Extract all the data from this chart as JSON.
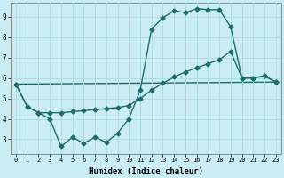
{
  "xlabel": "Humidex (Indice chaleur)",
  "xlim": [
    -0.5,
    23.5
  ],
  "ylim": [
    2.3,
    9.7
  ],
  "yticks": [
    3,
    4,
    5,
    6,
    7,
    8,
    9
  ],
  "xticks": [
    0,
    1,
    2,
    3,
    4,
    5,
    6,
    7,
    8,
    9,
    10,
    11,
    12,
    13,
    14,
    15,
    16,
    17,
    18,
    19,
    20,
    21,
    22,
    23
  ],
  "bg_color": "#caedf5",
  "grid_color": "#b0dce8",
  "line_color": "#1e6b6b",
  "line1_x": [
    0,
    1,
    2,
    3,
    4,
    5,
    6,
    7,
    8,
    9,
    10,
    11,
    12,
    13,
    14,
    15,
    16,
    17,
    18,
    19,
    20,
    21,
    22,
    23
  ],
  "line1_y": [
    5.7,
    4.6,
    4.3,
    4.0,
    2.65,
    3.1,
    2.8,
    3.1,
    2.85,
    3.3,
    4.0,
    5.4,
    8.4,
    8.95,
    9.3,
    9.2,
    9.4,
    9.35,
    9.35,
    8.5,
    6.0,
    6.0,
    6.1,
    5.8
  ],
  "line2_x": [
    0,
    1,
    2,
    3,
    4,
    5,
    6,
    7,
    8,
    9,
    10,
    11,
    12,
    13,
    14,
    15,
    16,
    17,
    18,
    19,
    20,
    21,
    22,
    23
  ],
  "line2_y": [
    5.7,
    4.6,
    4.3,
    4.3,
    4.3,
    4.35,
    4.4,
    4.45,
    4.5,
    4.55,
    4.65,
    5.0,
    5.4,
    5.75,
    6.05,
    6.3,
    6.5,
    6.7,
    6.9,
    7.3,
    6.0,
    6.0,
    6.1,
    5.8
  ],
  "line3_x": [
    0,
    23
  ],
  "line3_y": [
    5.7,
    5.8
  ],
  "markersize": 2.5,
  "linewidth": 1.0
}
